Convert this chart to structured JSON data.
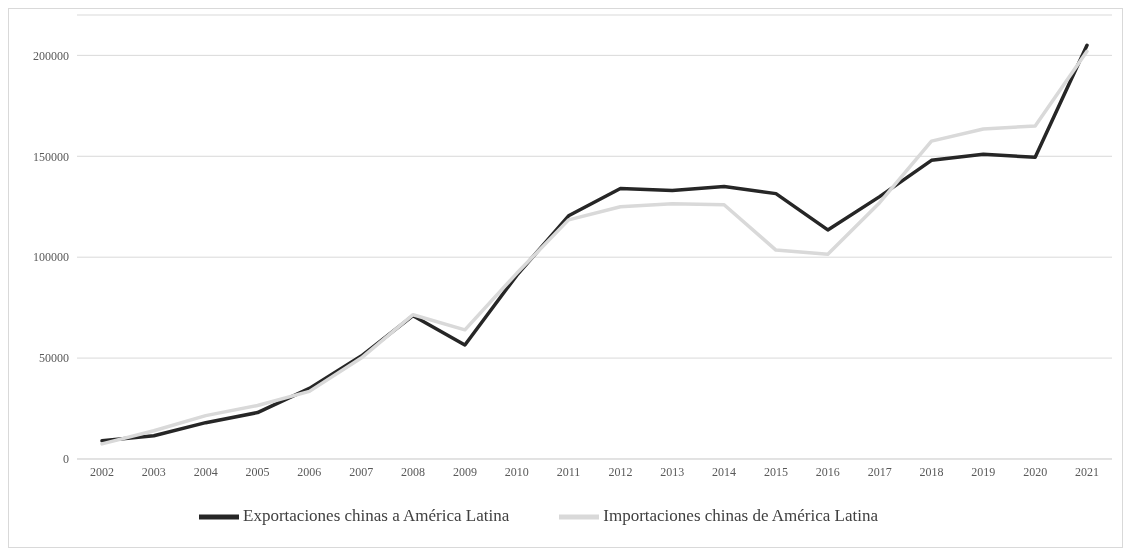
{
  "chart_data": {
    "type": "line",
    "categories": [
      "2002",
      "2003",
      "2004",
      "2005",
      "2006",
      "2007",
      "2008",
      "2009",
      "2010",
      "2011",
      "2012",
      "2013",
      "2014",
      "2015",
      "2016",
      "2017",
      "2018",
      "2019",
      "2020",
      "2021"
    ],
    "series": [
      {
        "name": "Exportaciones chinas a América Latina",
        "color": "#262626",
        "values": [
          9000,
          11500,
          18000,
          23000,
          35000,
          51000,
          71000,
          56500,
          91000,
          120500,
          134000,
          133000,
          135000,
          131500,
          113500,
          130000,
          148000,
          151000,
          149500,
          205000
        ]
      },
      {
        "name": "Importaciones chinas de América Latina",
        "color": "#d9d9d9",
        "values": [
          7500,
          14000,
          21500,
          26500,
          33500,
          50000,
          71500,
          64000,
          92000,
          118500,
          125000,
          126500,
          126000,
          103500,
          101500,
          127000,
          157500,
          163500,
          165000,
          202000
        ]
      }
    ],
    "ylim": [
      0,
      220000
    ],
    "yticks": [
      0,
      50000,
      100000,
      150000,
      200000
    ],
    "grid": "y",
    "legend": "bottom",
    "marker": "none",
    "line_style": "solid"
  }
}
